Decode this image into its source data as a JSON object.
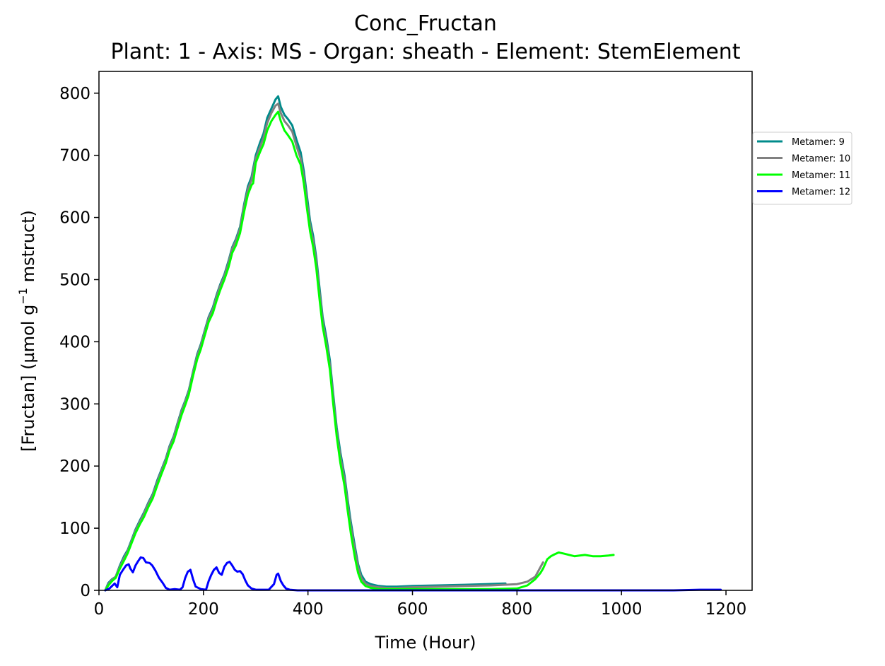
{
  "chart_data": {
    "type": "line",
    "title": "Conc_Fructan",
    "subtitle": "Plant: 1 - Axis: MS - Organ: sheath - Element: StemElement",
    "xlabel": "Time (Hour)",
    "ylabel_main": "[Fructan] (µmol g",
    "ylabel_sup": "−1",
    "ylabel_tail": " mstruct)",
    "xlim": [
      0,
      1250
    ],
    "ylim": [
      0,
      835
    ],
    "xticks": [
      0,
      200,
      400,
      600,
      800,
      1000,
      1200
    ],
    "yticks": [
      0,
      100,
      200,
      300,
      400,
      500,
      600,
      700,
      800
    ],
    "grid": false,
    "legend_position": "outside-right-top",
    "series": [
      {
        "name": "Metamer: 9",
        "color": "#008b8b",
        "points": [
          [
            12,
            0
          ],
          [
            18,
            12
          ],
          [
            25,
            18
          ],
          [
            32,
            22
          ],
          [
            40,
            40
          ],
          [
            48,
            55
          ],
          [
            55,
            65
          ],
          [
            62,
            80
          ],
          [
            70,
            98
          ],
          [
            78,
            112
          ],
          [
            86,
            125
          ],
          [
            95,
            142
          ],
          [
            103,
            155
          ],
          [
            112,
            178
          ],
          [
            120,
            195
          ],
          [
            128,
            212
          ],
          [
            135,
            232
          ],
          [
            143,
            248
          ],
          [
            150,
            268
          ],
          [
            158,
            290
          ],
          [
            165,
            305
          ],
          [
            172,
            322
          ],
          [
            180,
            352
          ],
          [
            188,
            380
          ],
          [
            195,
            396
          ],
          [
            203,
            420
          ],
          [
            210,
            440
          ],
          [
            218,
            455
          ],
          [
            225,
            475
          ],
          [
            232,
            492
          ],
          [
            240,
            508
          ],
          [
            248,
            530
          ],
          [
            255,
            552
          ],
          [
            262,
            565
          ],
          [
            270,
            585
          ],
          [
            278,
            622
          ],
          [
            285,
            650
          ],
          [
            292,
            665
          ],
          [
            300,
            700
          ],
          [
            308,
            720
          ],
          [
            315,
            735
          ],
          [
            322,
            760
          ],
          [
            330,
            775
          ],
          [
            338,
            790
          ],
          [
            343,
            795
          ],
          [
            348,
            778
          ],
          [
            355,
            765
          ],
          [
            362,
            758
          ],
          [
            370,
            748
          ],
          [
            378,
            725
          ],
          [
            386,
            705
          ],
          [
            392,
            675
          ],
          [
            398,
            635
          ],
          [
            404,
            595
          ],
          [
            410,
            570
          ],
          [
            416,
            535
          ],
          [
            422,
            488
          ],
          [
            428,
            440
          ],
          [
            435,
            408
          ],
          [
            442,
            370
          ],
          [
            448,
            318
          ],
          [
            455,
            262
          ],
          [
            462,
            222
          ],
          [
            470,
            185
          ],
          [
            476,
            145
          ],
          [
            482,
            110
          ],
          [
            490,
            70
          ],
          [
            496,
            42
          ],
          [
            502,
            25
          ],
          [
            510,
            14
          ],
          [
            520,
            10
          ],
          [
            535,
            7
          ],
          [
            550,
            6
          ],
          [
            570,
            6
          ],
          [
            600,
            7
          ],
          [
            650,
            8
          ],
          [
            700,
            9
          ],
          [
            740,
            10
          ],
          [
            778,
            11
          ]
        ]
      },
      {
        "name": "Metamer: 10",
        "color": "#808080",
        "points": [
          [
            12,
            0
          ],
          [
            18,
            10
          ],
          [
            25,
            17
          ],
          [
            32,
            22
          ],
          [
            40,
            38
          ],
          [
            48,
            52
          ],
          [
            55,
            63
          ],
          [
            62,
            78
          ],
          [
            70,
            96
          ],
          [
            78,
            110
          ],
          [
            86,
            123
          ],
          [
            95,
            140
          ],
          [
            103,
            153
          ],
          [
            112,
            175
          ],
          [
            120,
            193
          ],
          [
            128,
            210
          ],
          [
            135,
            230
          ],
          [
            143,
            246
          ],
          [
            150,
            266
          ],
          [
            158,
            288
          ],
          [
            165,
            303
          ],
          [
            172,
            320
          ],
          [
            180,
            350
          ],
          [
            188,
            377
          ],
          [
            195,
            394
          ],
          [
            203,
            418
          ],
          [
            210,
            438
          ],
          [
            218,
            452
          ],
          [
            225,
            472
          ],
          [
            232,
            490
          ],
          [
            240,
            505
          ],
          [
            248,
            527
          ],
          [
            255,
            550
          ],
          [
            262,
            562
          ],
          [
            270,
            582
          ],
          [
            278,
            618
          ],
          [
            285,
            645
          ],
          [
            292,
            660
          ],
          [
            300,
            695
          ],
          [
            308,
            713
          ],
          [
            315,
            728
          ],
          [
            322,
            752
          ],
          [
            330,
            768
          ],
          [
            338,
            780
          ],
          [
            343,
            783
          ],
          [
            348,
            768
          ],
          [
            355,
            755
          ],
          [
            362,
            748
          ],
          [
            370,
            738
          ],
          [
            378,
            715
          ],
          [
            386,
            695
          ],
          [
            392,
            665
          ],
          [
            398,
            625
          ],
          [
            404,
            588
          ],
          [
            410,
            562
          ],
          [
            416,
            528
          ],
          [
            422,
            480
          ],
          [
            428,
            433
          ],
          [
            435,
            400
          ],
          [
            442,
            362
          ],
          [
            448,
            310
          ],
          [
            455,
            255
          ],
          [
            462,
            215
          ],
          [
            470,
            178
          ],
          [
            476,
            138
          ],
          [
            482,
            103
          ],
          [
            490,
            63
          ],
          [
            496,
            37
          ],
          [
            502,
            20
          ],
          [
            510,
            11
          ],
          [
            520,
            7
          ],
          [
            535,
            5
          ],
          [
            550,
            4
          ],
          [
            570,
            4
          ],
          [
            600,
            5
          ],
          [
            650,
            6
          ],
          [
            700,
            7
          ],
          [
            750,
            8
          ],
          [
            800,
            10
          ],
          [
            820,
            14
          ],
          [
            835,
            22
          ],
          [
            850,
            45
          ]
        ]
      },
      {
        "name": "Metamer: 11",
        "color": "#00ff00",
        "points": [
          [
            12,
            0
          ],
          [
            18,
            8
          ],
          [
            25,
            15
          ],
          [
            32,
            20
          ],
          [
            40,
            35
          ],
          [
            48,
            48
          ],
          [
            55,
            60
          ],
          [
            62,
            75
          ],
          [
            70,
            92
          ],
          [
            78,
            106
          ],
          [
            86,
            118
          ],
          [
            95,
            135
          ],
          [
            103,
            148
          ],
          [
            112,
            170
          ],
          [
            120,
            188
          ],
          [
            128,
            205
          ],
          [
            135,
            225
          ],
          [
            143,
            240
          ],
          [
            150,
            260
          ],
          [
            158,
            282
          ],
          [
            165,
            298
          ],
          [
            172,
            315
          ],
          [
            180,
            345
          ],
          [
            188,
            372
          ],
          [
            195,
            388
          ],
          [
            203,
            412
          ],
          [
            210,
            432
          ],
          [
            218,
            446
          ],
          [
            225,
            466
          ],
          [
            232,
            483
          ],
          [
            240,
            500
          ],
          [
            248,
            520
          ],
          [
            255,
            543
          ],
          [
            262,
            555
          ],
          [
            270,
            575
          ],
          [
            278,
            610
          ],
          [
            285,
            637
          ],
          [
            292,
            652
          ],
          [
            295,
            655
          ],
          [
            300,
            688
          ],
          [
            308,
            705
          ],
          [
            315,
            718
          ],
          [
            322,
            740
          ],
          [
            330,
            755
          ],
          [
            338,
            765
          ],
          [
            343,
            770
          ],
          [
            348,
            755
          ],
          [
            355,
            740
          ],
          [
            362,
            732
          ],
          [
            370,
            722
          ],
          [
            378,
            700
          ],
          [
            386,
            685
          ],
          [
            392,
            655
          ],
          [
            398,
            615
          ],
          [
            404,
            578
          ],
          [
            410,
            552
          ],
          [
            416,
            518
          ],
          [
            422,
            470
          ],
          [
            428,
            425
          ],
          [
            435,
            392
          ],
          [
            442,
            355
          ],
          [
            448,
            302
          ],
          [
            455,
            248
          ],
          [
            462,
            205
          ],
          [
            470,
            168
          ],
          [
            476,
            128
          ],
          [
            482,
            92
          ],
          [
            490,
            52
          ],
          [
            496,
            28
          ],
          [
            502,
            14
          ],
          [
            510,
            7
          ],
          [
            520,
            4
          ],
          [
            535,
            2
          ],
          [
            550,
            2
          ],
          [
            600,
            2
          ],
          [
            650,
            2
          ],
          [
            700,
            2
          ],
          [
            750,
            2
          ],
          [
            800,
            3
          ],
          [
            820,
            8
          ],
          [
            835,
            18
          ],
          [
            845,
            28
          ],
          [
            850,
            35
          ],
          [
            858,
            50
          ],
          [
            865,
            55
          ],
          [
            872,
            58
          ],
          [
            880,
            61
          ],
          [
            890,
            59
          ],
          [
            900,
            57
          ],
          [
            910,
            55
          ],
          [
            920,
            56
          ],
          [
            930,
            57
          ],
          [
            945,
            55
          ],
          [
            960,
            55
          ],
          [
            975,
            56
          ],
          [
            985,
            57
          ]
        ]
      },
      {
        "name": "Metamer: 12",
        "color": "#0000ff",
        "points": [
          [
            12,
            0
          ],
          [
            20,
            3
          ],
          [
            25,
            7
          ],
          [
            30,
            11
          ],
          [
            35,
            5
          ],
          [
            40,
            25
          ],
          [
            46,
            33
          ],
          [
            52,
            40
          ],
          [
            57,
            42
          ],
          [
            60,
            35
          ],
          [
            65,
            29
          ],
          [
            70,
            40
          ],
          [
            75,
            47
          ],
          [
            80,
            53
          ],
          [
            85,
            52
          ],
          [
            90,
            45
          ],
          [
            97,
            44
          ],
          [
            102,
            40
          ],
          [
            108,
            32
          ],
          [
            115,
            20
          ],
          [
            122,
            12
          ],
          [
            128,
            4
          ],
          [
            135,
            1
          ],
          [
            145,
            2
          ],
          [
            155,
            1
          ],
          [
            160,
            5
          ],
          [
            165,
            20
          ],
          [
            170,
            30
          ],
          [
            175,
            33
          ],
          [
            180,
            18
          ],
          [
            185,
            6
          ],
          [
            195,
            2
          ],
          [
            205,
            1
          ],
          [
            210,
            15
          ],
          [
            215,
            25
          ],
          [
            220,
            33
          ],
          [
            225,
            37
          ],
          [
            230,
            28
          ],
          [
            235,
            25
          ],
          [
            240,
            38
          ],
          [
            245,
            44
          ],
          [
            250,
            46
          ],
          [
            255,
            40
          ],
          [
            260,
            33
          ],
          [
            265,
            30
          ],
          [
            270,
            31
          ],
          [
            275,
            26
          ],
          [
            280,
            16
          ],
          [
            285,
            8
          ],
          [
            292,
            3
          ],
          [
            300,
            1
          ],
          [
            310,
            1
          ],
          [
            325,
            1
          ],
          [
            335,
            10
          ],
          [
            340,
            25
          ],
          [
            343,
            27
          ],
          [
            348,
            15
          ],
          [
            353,
            8
          ],
          [
            358,
            3
          ],
          [
            365,
            1
          ],
          [
            380,
            0
          ],
          [
            400,
            0
          ],
          [
            500,
            0
          ],
          [
            600,
            0
          ],
          [
            700,
            0
          ],
          [
            800,
            0
          ],
          [
            900,
            0
          ],
          [
            1000,
            0
          ],
          [
            1100,
            0
          ],
          [
            1150,
            1
          ],
          [
            1190,
            1
          ]
        ]
      }
    ]
  }
}
